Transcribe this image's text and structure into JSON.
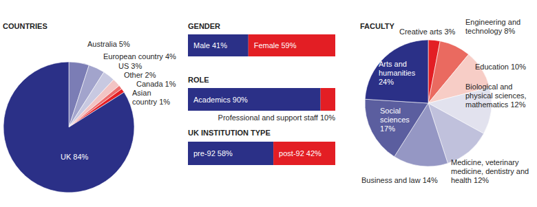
{
  "chart_data": [
    {
      "type": "pie",
      "title": "COUNTRIES",
      "categories": [
        "Australia",
        "European country",
        "US",
        "Other",
        "Canada",
        "Asian country",
        "UK"
      ],
      "values": [
        5,
        4,
        3,
        2,
        1,
        1,
        84
      ],
      "value_labels": [
        "5%",
        "4%",
        "3%",
        "2%",
        "1%",
        "1%",
        "84%"
      ],
      "colors": [
        "#7b7db5",
        "#a2a4cc",
        "#c8c9e1",
        "#f2c4c4",
        "#ec6b6b",
        "#e31e24",
        "#2b3087"
      ],
      "data_labels": true
    },
    {
      "type": "bar",
      "title": "GENDER",
      "orientation": "horizontal",
      "stacked": true,
      "data_labels": true,
      "tick_labels": false,
      "series": [
        {
          "name": "Male",
          "color": "#2b3087",
          "values": [
            41
          ],
          "value_labels": [
            "41%"
          ]
        },
        {
          "name": "Female",
          "color": "#e31e24",
          "values": [
            59
          ],
          "value_labels": [
            "59%"
          ]
        }
      ]
    },
    {
      "type": "bar",
      "title": "ROLE",
      "orientation": "horizontal",
      "stacked": true,
      "data_labels": true,
      "tick_labels": false,
      "series": [
        {
          "name": "Academics",
          "color": "#2b3087",
          "values": [
            90
          ],
          "value_labels": [
            "90%"
          ]
        },
        {
          "name": "Professional and support staff",
          "color": "#e31e24",
          "values": [
            10
          ],
          "value_labels": [
            "10%"
          ]
        }
      ]
    },
    {
      "type": "bar",
      "title": "UK INSTITUTION TYPE",
      "orientation": "horizontal",
      "stacked": true,
      "data_labels": true,
      "tick_labels": false,
      "series": [
        {
          "name": "pre-92",
          "color": "#2b3087",
          "values": [
            58
          ],
          "value_labels": [
            "58%"
          ]
        },
        {
          "name": "post-92",
          "color": "#e31e24",
          "values": [
            42
          ],
          "value_labels": [
            "42%"
          ]
        }
      ]
    },
    {
      "type": "pie",
      "title": "FACULTY",
      "categories": [
        "Creative arts",
        "Engineering and technology",
        "Education",
        "Biological and physical sciences, mathematics",
        "Medicine, veterinary medicine, dentistry and health",
        "Business and law",
        "Social sciences",
        "Arts and humanities"
      ],
      "values": [
        3,
        8,
        10,
        12,
        12,
        14,
        17,
        24
      ],
      "value_labels": [
        "3%",
        "8%",
        "10%",
        "12%",
        "12%",
        "14%",
        "17%",
        "24%"
      ],
      "colors": [
        "#e31e24",
        "#ea6a60",
        "#f7cdc6",
        "#e2e2ee",
        "#c0c1dc",
        "#9597c4",
        "#5b5e9f",
        "#2b3087"
      ],
      "data_labels": true
    }
  ]
}
